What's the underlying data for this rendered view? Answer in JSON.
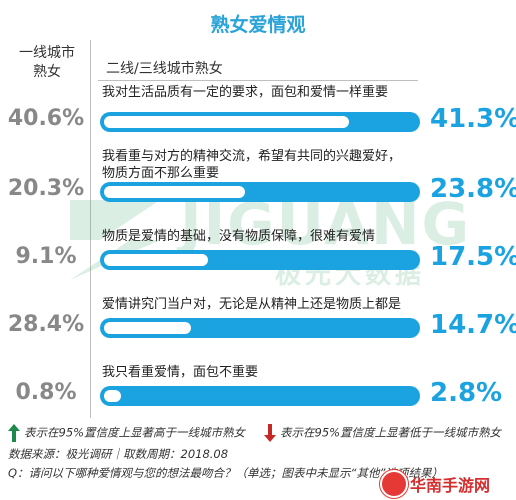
{
  "chart_data": {
    "type": "bar",
    "title": "熟女爱情观",
    "series": [
      {
        "name": "一线城市熟女",
        "values": [
          40.6,
          20.3,
          9.1,
          28.4,
          0.8
        ]
      },
      {
        "name": "二线/三线城市熟女",
        "values": [
          41.3,
          23.8,
          17.5,
          14.7,
          2.8
        ]
      }
    ],
    "categories": [
      "我对生活品质有一定的要求，面包和爱情一样重要",
      "我看重与对方的精神交流，希望有共同的兴趣爱好，物质方面不那么重要",
      "物质是爱情的基础，没有物质保障，很难有爱情",
      "爱情讲究门当户对，无论是从精神上还是物质上都是",
      "我只看重爱情，面包不重要"
    ],
    "category_lines": [
      [
        "我对生活品质有一定的要求，面包和爱情一样重要"
      ],
      [
        "我看重与对方的精神交流，希望有共同的兴趣爱好，",
        "物质方面不那么重要"
      ],
      [
        "物质是爱情的基础，没有物质保障，很难有爱情"
      ],
      [
        "爱情讲究门当户对，无论是从精神上还是物质上都是"
      ],
      [
        "我只看重爱情，面包不重要"
      ]
    ],
    "tier1_labels": [
      "40.6%",
      "20.3%",
      "9.1%",
      "28.4%",
      "0.8%"
    ],
    "tier23_labels": [
      "41.3%",
      "23.8%",
      "17.5%",
      "14.7%",
      "2.8%"
    ],
    "significance": [
      "",
      "",
      "up",
      "down",
      ""
    ],
    "xlim": [
      0,
      100
    ]
  },
  "headers": {
    "left_line1": "一线城市",
    "left_line2": "熟女",
    "right": "二线/三线城市熟女"
  },
  "legend": {
    "up_text": "表示在95%置信度上显著高于一线城市熟女",
    "down_text": "表示在95%置信度上显著低于一线城市熟女"
  },
  "footer": {
    "source": "数据来源：极光调研｜取数周期：2018.08",
    "question": "Q：请问以下哪种爱情观与您的想法最吻合？（单选；图表中未显示“其他”选项结果）"
  },
  "watermark": {
    "text": "JIGUANG",
    "sub": "极光大数据"
  },
  "brand": {
    "text": "华南手游网"
  },
  "colors": {
    "bar": "#1aa3e0",
    "bar_fill": "#ffffff",
    "up_arrow": "#1e8a4c",
    "down_arrow": "#c62828",
    "title": "#2aa3d8"
  }
}
